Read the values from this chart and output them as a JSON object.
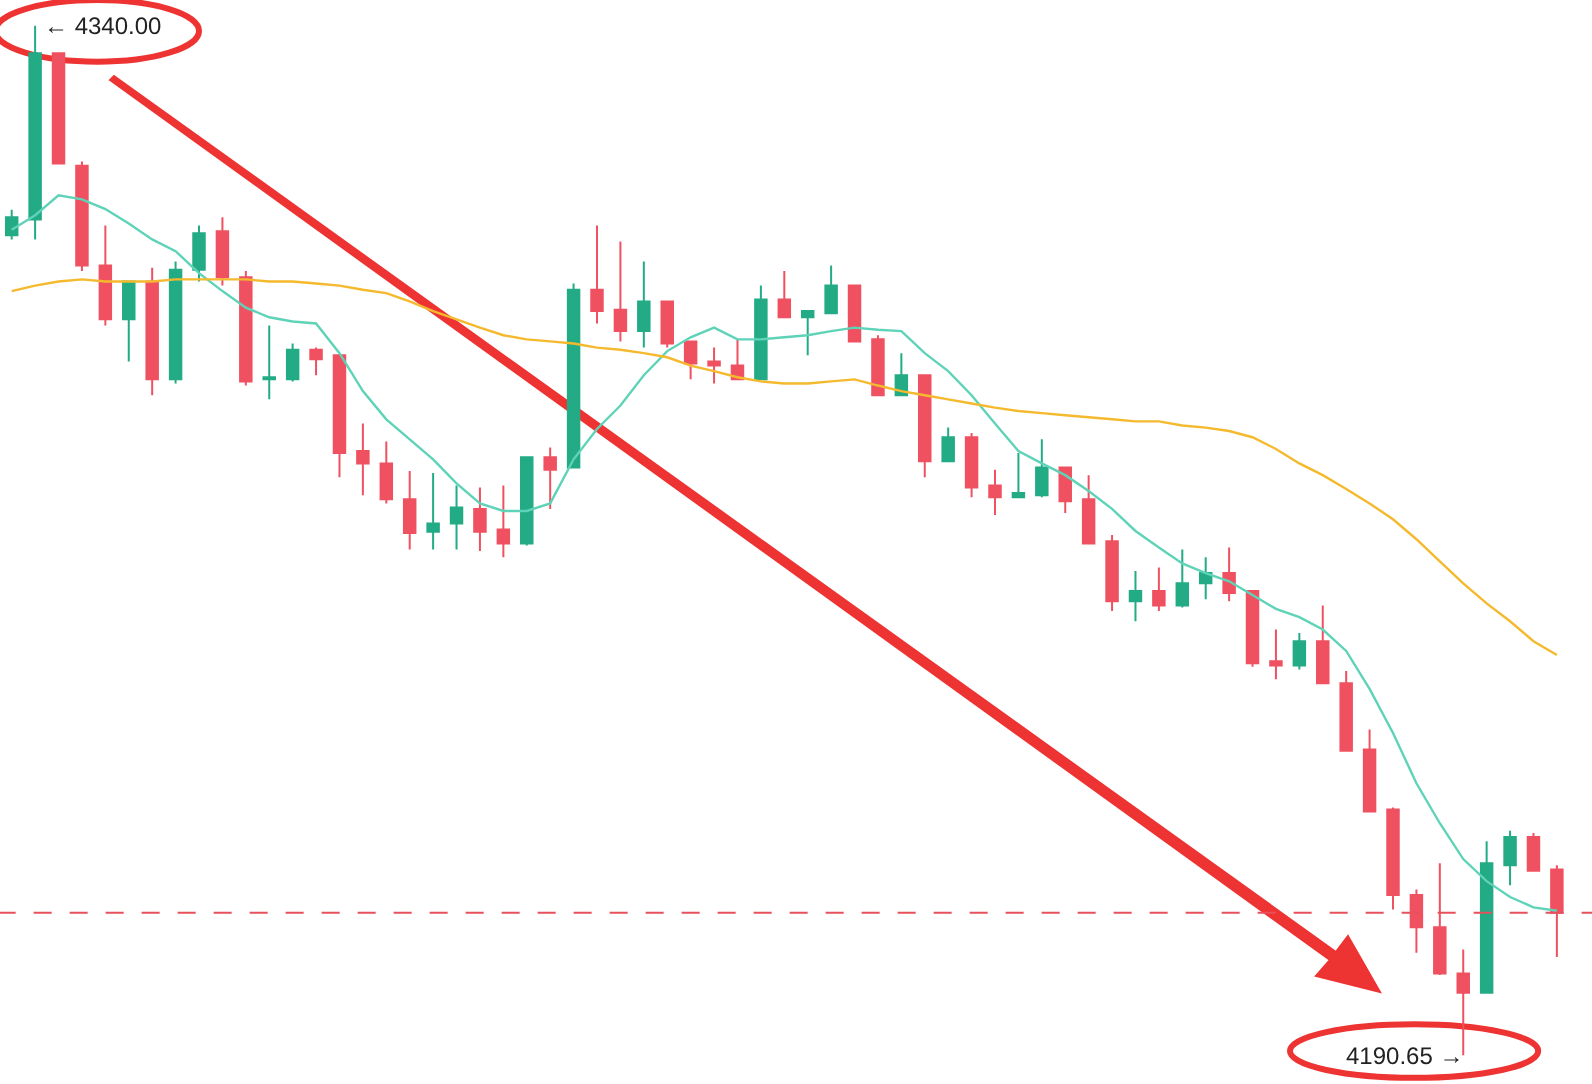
{
  "chart_data": {
    "type": "candlestick",
    "categories": [
      null,
      null,
      null,
      null,
      null,
      null,
      null,
      null,
      null,
      null,
      null,
      null,
      null,
      null,
      null,
      null,
      null,
      null,
      null,
      null,
      null,
      null,
      null,
      null,
      null,
      null,
      null,
      null,
      null,
      null,
      null,
      null,
      null,
      null,
      null,
      null,
      null,
      null,
      null,
      null,
      null,
      null,
      null,
      null,
      null,
      null,
      null,
      null,
      null,
      null,
      null,
      null,
      null,
      null,
      null,
      null,
      null,
      null,
      null,
      null,
      null,
      null,
      null,
      null,
      null,
      null,
      null
    ],
    "ohlc": [
      [
        4309.6,
        4313.3,
        4309.0,
        4312.2
      ],
      [
        4311.9,
        4340.0,
        4309.0,
        4336.0
      ],
      [
        4336.0,
        4336.0,
        4320.0,
        4320.0
      ],
      [
        4319.7,
        4320.3,
        4304.4,
        4305.2
      ],
      [
        4305.2,
        4311.0,
        4296.5,
        4297.4
      ],
      [
        4297.4,
        4302.9,
        4291.3,
        4302.9
      ],
      [
        4302.9,
        4304.9,
        4286.4,
        4288.7
      ],
      [
        4288.7,
        4305.8,
        4288.1,
        4304.6
      ],
      [
        4304.6,
        4311.0,
        4302.9,
        4309.9
      ],
      [
        4310.2,
        4312.2,
        4302.3,
        4303.5
      ],
      [
        4303.5,
        4304.4,
        4287.8,
        4288.4
      ],
      [
        4288.7,
        4296.5,
        4285.8,
        4289.0
      ],
      [
        4288.7,
        4293.9,
        4288.4,
        4293.0
      ],
      [
        4293.0,
        4293.3,
        4289.3,
        4291.6
      ],
      [
        4292.2,
        4292.2,
        4274.5,
        4278.0
      ],
      [
        4278.3,
        4282.3,
        4271.9,
        4276.5
      ],
      [
        4276.5,
        4279.7,
        4270.7,
        4271.3
      ],
      [
        4271.3,
        4275.4,
        4264.0,
        4266.4
      ],
      [
        4266.6,
        4275.1,
        4264.0,
        4267.8
      ],
      [
        4267.8,
        4273.3,
        4264.0,
        4270.1
      ],
      [
        4269.9,
        4273.0,
        4263.8,
        4266.6
      ],
      [
        4266.9,
        4273.3,
        4262.9,
        4264.9
      ],
      [
        4264.9,
        4277.4,
        4264.6,
        4277.4
      ],
      [
        4277.4,
        4278.8,
        4269.9,
        4275.6
      ],
      [
        4275.9,
        4302.6,
        4275.9,
        4301.7
      ],
      [
        4301.7,
        4311.0,
        4296.8,
        4298.6
      ],
      [
        4298.8,
        4308.7,
        4294.2,
        4295.7
      ],
      [
        4295.7,
        4305.8,
        4293.3,
        4300.0
      ],
      [
        4300.0,
        4300.0,
        4293.3,
        4293.9
      ],
      [
        4294.2,
        4294.2,
        4288.7,
        4291.0
      ],
      [
        4291.3,
        4293.3,
        4288.1,
        4290.7
      ],
      [
        4290.7,
        4294.5,
        4288.7,
        4288.7
      ],
      [
        4288.7,
        4302.3,
        4288.7,
        4300.3
      ],
      [
        4300.3,
        4304.4,
        4297.7,
        4297.7
      ],
      [
        4297.7,
        4298.6,
        4292.2,
        4298.6
      ],
      [
        4298.3,
        4305.2,
        4298.3,
        4302.3
      ],
      [
        4302.3,
        4302.3,
        4294.2,
        4294.2
      ],
      [
        4294.5,
        4295.1,
        4286.4,
        4286.4
      ],
      [
        4286.4,
        4292.5,
        4286.4,
        4289.3
      ],
      [
        4289.3,
        4289.3,
        4274.5,
        4276.8
      ],
      [
        4276.8,
        4281.7,
        4276.8,
        4280.3
      ],
      [
        4280.3,
        4280.9,
        4271.6,
        4273.0
      ],
      [
        4273.3,
        4275.6,
        4269.0,
        4271.6
      ],
      [
        4271.6,
        4278.0,
        4271.6,
        4272.2
      ],
      [
        4271.9,
        4280.0,
        4271.6,
        4275.9
      ],
      [
        4275.9,
        4275.9,
        4269.3,
        4271.0
      ],
      [
        4271.3,
        4274.8,
        4264.9,
        4264.9
      ],
      [
        4265.2,
        4266.1,
        4255.1,
        4256.5
      ],
      [
        4256.5,
        4260.9,
        4253.6,
        4258.0
      ],
      [
        4258.0,
        4261.4,
        4255.1,
        4255.9
      ],
      [
        4255.9,
        4264.0,
        4255.6,
        4259.1
      ],
      [
        4259.1,
        4262.9,
        4256.8,
        4260.6
      ],
      [
        4260.6,
        4264.3,
        4256.5,
        4257.7
      ],
      [
        4258.0,
        4258.0,
        4247.0,
        4247.5
      ],
      [
        4247.8,
        4252.4,
        4245.2,
        4247.2
      ],
      [
        4247.2,
        4251.9,
        4246.6,
        4250.7
      ],
      [
        4250.7,
        4255.9,
        4244.6,
        4244.6
      ],
      [
        4244.6,
        4246.4,
        4234.8,
        4234.8
      ],
      [
        4235.0,
        4237.9,
        4226.0,
        4226.0
      ],
      [
        4226.3,
        4226.6,
        4211.8,
        4213.9
      ],
      [
        4213.9,
        4214.7,
        4205.5,
        4209.2
      ],
      [
        4209.2,
        4218.5,
        4202.3,
        4202.5
      ],
      [
        4202.5,
        4206.0,
        4190.65,
        4199.7
      ],
      [
        4199.7,
        4221.7,
        4199.7,
        4218.5
      ],
      [
        4218.2,
        4223.2,
        4215.3,
        4222.3
      ],
      [
        4222.3,
        4222.9,
        4217.4,
        4217.4
      ],
      [
        4217.6,
        4218.2,
        4204.9,
        4211.3
      ]
    ],
    "series": [
      {
        "type": "line",
        "color": "#5fd3b8",
        "values": [
          4310.4,
          4312.5,
          4315.4,
          4314.8,
          4313.4,
          4311.3,
          4309.0,
          4307.3,
          4304.1,
          4301.5,
          4299.1,
          4297.7,
          4297.1,
          4296.8,
          4292.5,
          4287.0,
          4282.9,
          4280.0,
          4277.1,
          4273.6,
          4270.7,
          4269.6,
          4269.6,
          4270.7,
          4277.1,
          4281.5,
          4284.9,
          4289.3,
          4292.8,
          4294.8,
          4296.2,
          4294.5,
          4294.5,
          4294.8,
          4295.1,
          4295.7,
          4296.2,
          4295.9,
          4295.7,
          4292.5,
          4289.9,
          4286.4,
          4282.3,
          4278.3,
          4276.5,
          4274.8,
          4272.5,
          4269.9,
          4266.7,
          4264.3,
          4262.0,
          4260.6,
          4259.4,
          4257.4,
          4255.4,
          4254.2,
          4252.4,
          4249.3,
          4243.8,
          4237.4,
          4230.1,
          4224.3,
          4219.1,
          4215.9,
          4213.6,
          4212.1,
          4211.6
        ]
      },
      {
        "type": "line",
        "color": "#f5b92e",
        "values": [
          4301.5,
          4302.3,
          4302.9,
          4303.2,
          4302.9,
          4302.9,
          4302.9,
          4303.2,
          4303.2,
          4303.2,
          4303.2,
          4302.9,
          4302.9,
          4302.6,
          4302.3,
          4301.7,
          4301.2,
          4300.0,
          4298.6,
          4297.4,
          4296.2,
          4295.1,
          4294.5,
          4294.2,
          4293.9,
          4293.3,
          4293.0,
          4292.5,
          4291.9,
          4290.7,
          4289.9,
          4289.0,
          4288.4,
          4288.1,
          4288.1,
          4288.4,
          4288.7,
          4287.8,
          4287.0,
          4286.4,
          4285.8,
          4285.2,
          4284.6,
          4284.1,
          4283.8,
          4283.5,
          4283.2,
          4282.9,
          4282.6,
          4282.6,
          4282.0,
          4281.7,
          4281.2,
          4280.3,
          4278.6,
          4276.5,
          4274.8,
          4272.8,
          4270.7,
          4268.4,
          4265.5,
          4262.3,
          4259.1,
          4256.2,
          4253.6,
          4250.7,
          4248.7
        ]
      }
    ],
    "ref_lines": [
      {
        "axis": "y",
        "value": 4211.3,
        "color": "#e8505b",
        "line_style": "dashed"
      }
    ],
    "annotations": [
      "← 4340.00",
      "4190.65 →"
    ],
    "tick_labels": false
  }
}
